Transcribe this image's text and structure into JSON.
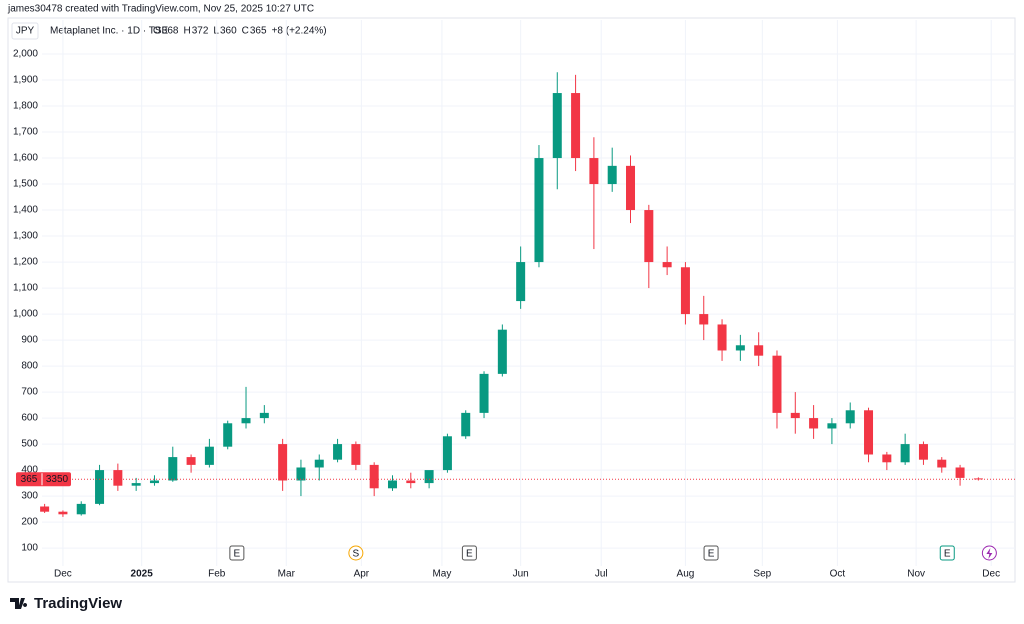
{
  "header": "james30478 created with TradingView.com, Nov 25, 2025 10:27 UTC",
  "footer_brand": "TradingView",
  "chart_data": {
    "type": "candlestick",
    "currency": "JPY",
    "symbol": "Metaplanet Inc. · 1D · TSE",
    "legend_values": [
      {
        "label": "O",
        "value": 368
      },
      {
        "label": "H",
        "value": 372
      },
      {
        "label": "L",
        "value": 360
      },
      {
        "label": "C",
        "value": 365
      }
    ],
    "change": "+8 (+2.24%)",
    "last_price": 365,
    "countdown": "3350",
    "up_color": "#089981",
    "down_color": "#f23645",
    "open": [
      260,
      240,
      230,
      270,
      400,
      340,
      350,
      360,
      450,
      420,
      490,
      580,
      600,
      500,
      360,
      410,
      440,
      500,
      420,
      330,
      360,
      350,
      400,
      530,
      620,
      770,
      1050,
      1200,
      1600,
      1850,
      1600,
      1500,
      1570,
      1400,
      1200,
      1180,
      1000,
      960,
      860,
      880,
      840,
      620,
      600,
      560,
      580,
      630,
      460,
      430,
      500,
      440,
      410,
      368
    ],
    "high": [
      270,
      245,
      280,
      420,
      425,
      370,
      380,
      490,
      460,
      520,
      590,
      720,
      650,
      520,
      440,
      460,
      520,
      510,
      430,
      380,
      390,
      380,
      540,
      630,
      780,
      960,
      1260,
      1650,
      1930,
      1920,
      1680,
      1640,
      1610,
      1420,
      1260,
      1200,
      1070,
      980,
      920,
      930,
      860,
      700,
      650,
      600,
      660,
      640,
      470,
      540,
      510,
      450,
      420,
      372
    ],
    "low": [
      235,
      220,
      225,
      265,
      320,
      320,
      340,
      355,
      390,
      410,
      480,
      560,
      580,
      320,
      300,
      360,
      430,
      400,
      300,
      320,
      330,
      330,
      390,
      520,
      600,
      760,
      1020,
      1180,
      1480,
      1550,
      1250,
      1470,
      1350,
      1100,
      1150,
      960,
      900,
      820,
      820,
      800,
      560,
      540,
      520,
      500,
      560,
      430,
      400,
      420,
      420,
      390,
      340,
      360
    ],
    "close": [
      240,
      230,
      270,
      400,
      340,
      350,
      360,
      450,
      420,
      490,
      580,
      600,
      620,
      360,
      410,
      440,
      500,
      420,
      330,
      360,
      350,
      400,
      530,
      620,
      770,
      940,
      1200,
      1600,
      1850,
      1600,
      1500,
      1570,
      1400,
      1200,
      1180,
      1000,
      960,
      860,
      880,
      840,
      620,
      600,
      560,
      580,
      630,
      460,
      430,
      500,
      440,
      410,
      370,
      365
    ],
    "xlim": [
      -2,
      53
    ],
    "xticks": [
      {
        "value": 1.0,
        "label": "Dec"
      },
      {
        "value": 5.3,
        "label": "2025"
      },
      {
        "value": 9.4,
        "label": "Feb"
      },
      {
        "value": 13.2,
        "label": "Mar"
      },
      {
        "value": 17.3,
        "label": "Apr"
      },
      {
        "value": 21.7,
        "label": "May"
      },
      {
        "value": 26.0,
        "label": "Jun"
      },
      {
        "value": 30.4,
        "label": "Jul"
      },
      {
        "value": 35.0,
        "label": "Aug"
      },
      {
        "value": 39.2,
        "label": "Sep"
      },
      {
        "value": 43.3,
        "label": "Oct"
      },
      {
        "value": 47.6,
        "label": "Nov"
      },
      {
        "value": 51.7,
        "label": "Dec"
      }
    ],
    "ylim": [
      35,
      2054
    ],
    "yticks": [
      100,
      200,
      300,
      400,
      500,
      600,
      700,
      800,
      900,
      {
        "value": 1000,
        "label": "1,000"
      },
      {
        "value": 1100,
        "label": "1,100"
      },
      {
        "value": 1200,
        "label": "1,200"
      },
      {
        "value": 1300,
        "label": "1,300"
      },
      {
        "value": 1400,
        "label": "1,400"
      },
      {
        "value": 1500,
        "label": "1,500"
      },
      {
        "value": 1600,
        "label": "1,600"
      },
      {
        "value": 1700,
        "label": "1,700"
      },
      {
        "value": 1800,
        "label": "1,800"
      },
      {
        "value": 1900,
        "label": "1,900"
      },
      {
        "value": 2000,
        "label": "2,000"
      }
    ],
    "grid": true,
    "events": [
      {
        "label": "E",
        "at": 10.5
      },
      {
        "label": "S",
        "at": 17.0
      },
      {
        "label": "E",
        "at": 23.2
      },
      {
        "label": "E",
        "at": 36.4
      },
      {
        "label": "E",
        "at": 49.3
      }
    ]
  }
}
